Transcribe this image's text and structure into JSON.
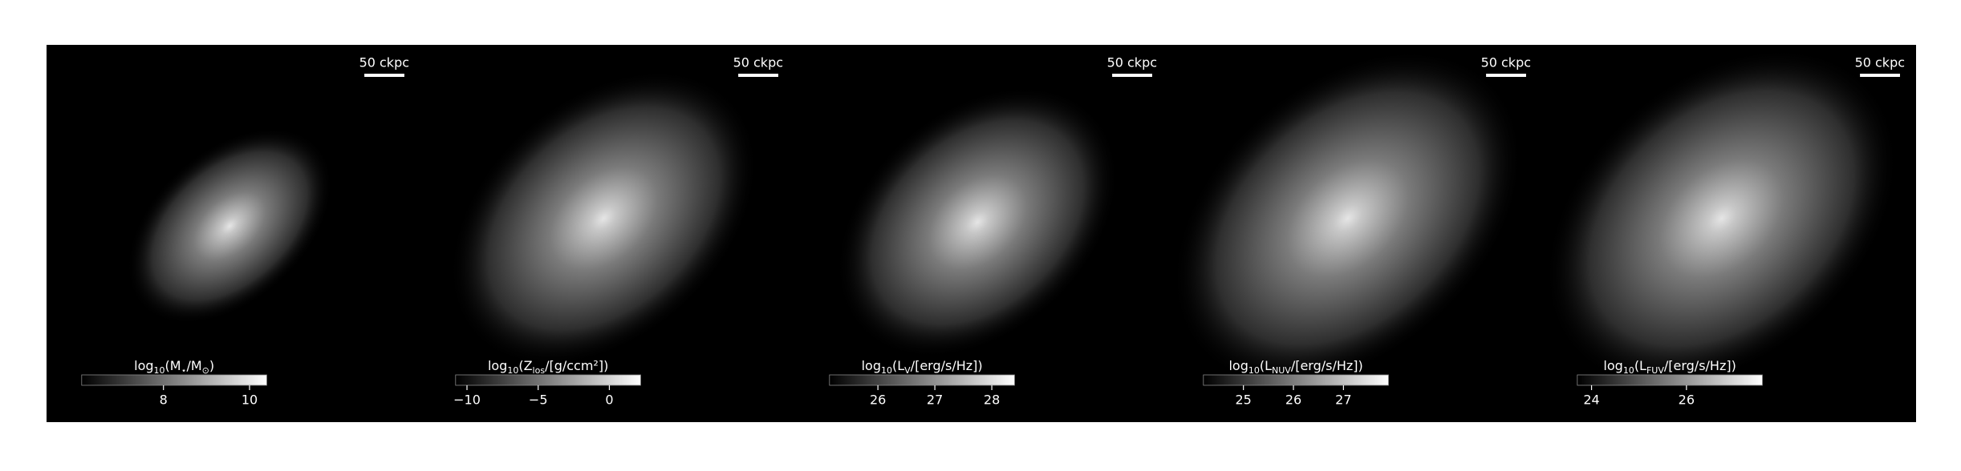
{
  "chart_data": [
    {
      "type": "image",
      "scalebar": "50 ckpc",
      "label": [
        {
          "t": "log"
        },
        {
          "t": "10",
          "sub": true
        },
        {
          "t": "(M"
        },
        {
          "t": "⋆",
          "sub": true
        },
        {
          "t": "/M"
        },
        {
          "t": "⊙",
          "sub": true
        },
        {
          "t": ")"
        }
      ],
      "clim": [
        6.1,
        10.4
      ],
      "cticks": [
        8,
        10
      ]
    },
    {
      "type": "image",
      "scalebar": "50 ckpc",
      "label": [
        {
          "t": "log"
        },
        {
          "t": "10",
          "sub": true
        },
        {
          "t": "(Z"
        },
        {
          "t": "los",
          "sub": true
        },
        {
          "t": "/[g/ccm²])"
        }
      ],
      "clim": [
        -10.8,
        2.2
      ],
      "cticks": [
        {
          "value": -10,
          "label": "−10"
        },
        {
          "value": -5,
          "label": "−5"
        },
        0
      ]
    },
    {
      "type": "image",
      "scalebar": "50 ckpc",
      "label": [
        {
          "t": "log"
        },
        {
          "t": "10",
          "sub": true
        },
        {
          "t": "(L"
        },
        {
          "t": "V",
          "sub": true
        },
        {
          "t": "/[erg/s/Hz])"
        }
      ],
      "clim": [
        25.15,
        28.4
      ],
      "cticks": [
        26,
        27,
        28
      ]
    },
    {
      "type": "image",
      "scalebar": "50 ckpc",
      "label": [
        {
          "t": "log"
        },
        {
          "t": "10",
          "sub": true
        },
        {
          "t": "(L"
        },
        {
          "t": "NUV",
          "sub": true
        },
        {
          "t": "/[erg/s/Hz])"
        }
      ],
      "clim": [
        24.2,
        27.9
      ],
      "cticks": [
        25,
        26,
        27
      ]
    },
    {
      "type": "image",
      "scalebar": "50 ckpc",
      "label": [
        {
          "t": "log"
        },
        {
          "t": "10",
          "sub": true
        },
        {
          "t": "(L"
        },
        {
          "t": "FUV",
          "sub": true
        },
        {
          "t": "/[erg/s/Hz])"
        }
      ],
      "clim": [
        23.7,
        27.6
      ],
      "cticks": [
        24,
        26
      ]
    }
  ]
}
